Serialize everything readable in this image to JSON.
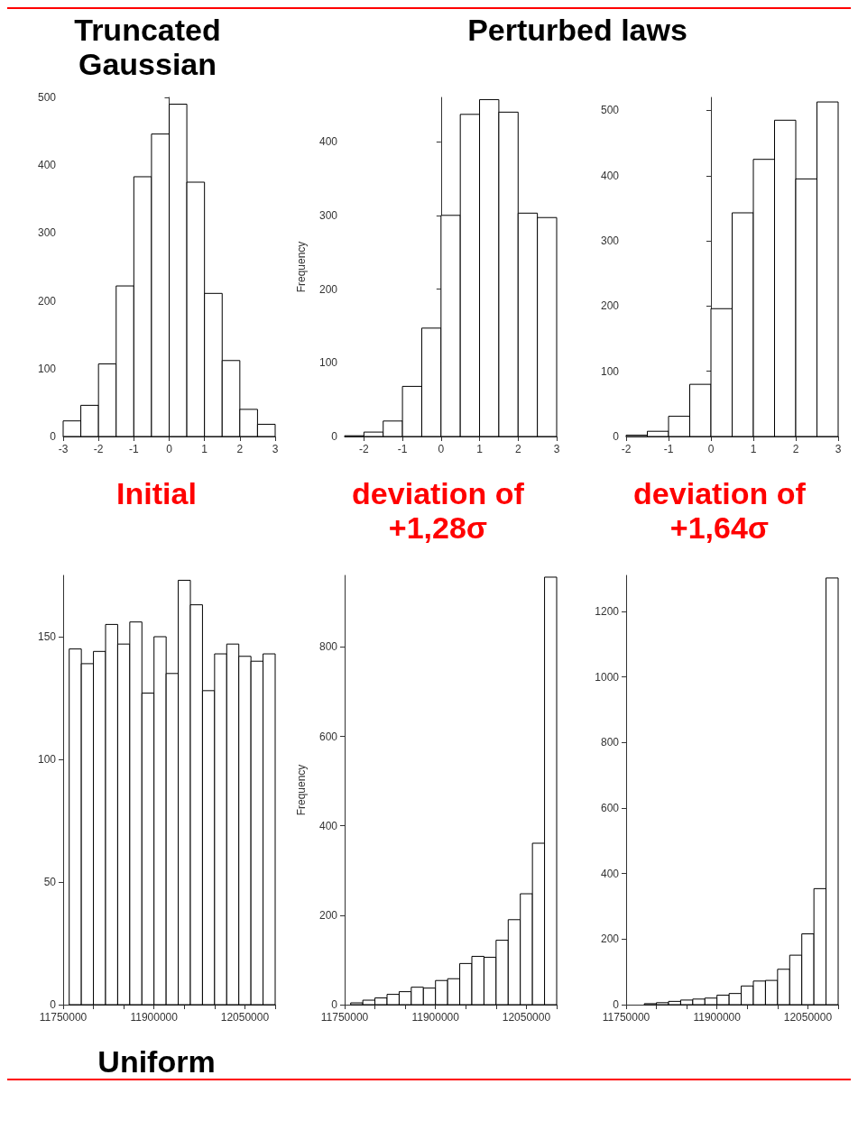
{
  "chart_data": [
    {
      "type": "histogram",
      "title": "Truncated Gaussian",
      "annotations": [
        "Initial"
      ],
      "color": "#ffffff",
      "bins": [
        -3,
        -2.5,
        -2,
        -1.5,
        -1,
        -0.5,
        0,
        0.5,
        1,
        1.5,
        2,
        2.5,
        3
      ],
      "values": [
        23,
        46,
        107,
        222,
        383,
        446,
        490,
        375,
        211,
        112,
        40,
        18
      ],
      "xlim": [
        -3,
        3
      ],
      "xticks": [
        -3,
        -2,
        -1,
        0,
        1,
        2,
        3
      ],
      "ylim": [
        0,
        500
      ],
      "yticks": [
        0,
        100,
        200,
        300,
        400,
        500
      ]
    },
    {
      "type": "histogram",
      "title": "Perturbed laws",
      "ylabel": "Frequency",
      "annotations": [
        "deviation of +1,28σ"
      ],
      "color": "#ffffff",
      "bins": [
        -2.5,
        -2,
        -1.5,
        -1,
        -0.5,
        0,
        0.5,
        1,
        1.5,
        2,
        2.5,
        3
      ],
      "values": [
        1,
        6,
        21,
        68,
        147,
        300,
        437,
        457,
        440,
        303,
        297
      ],
      "xlim": [
        -2.5,
        3
      ],
      "xticks": [
        -2,
        -1,
        0,
        1,
        2,
        3
      ],
      "ylim": [
        0,
        460
      ],
      "yticks": [
        0,
        100,
        200,
        300,
        400
      ]
    },
    {
      "type": "histogram",
      "annotations": [
        "deviation of +1,64σ"
      ],
      "color": "#ffffff",
      "bins": [
        -2,
        -1.5,
        -1,
        -0.5,
        0,
        0.5,
        1,
        1.5,
        2,
        2.5,
        3
      ],
      "values": [
        2,
        8,
        31,
        80,
        196,
        343,
        425,
        485,
        395,
        513
      ],
      "xlim": [
        -2,
        3
      ],
      "xticks": [
        -2,
        -1,
        0,
        1,
        2,
        3
      ],
      "ylim": [
        0,
        520
      ],
      "yticks": [
        0,
        100,
        200,
        300,
        400,
        500
      ]
    },
    {
      "type": "histogram",
      "annotations": [
        "Uniform"
      ],
      "color": "#ffffff",
      "bins": [
        11760000,
        11780000,
        11800000,
        11820000,
        11840000,
        11860000,
        11880000,
        11900000,
        11920000,
        11940000,
        11960000,
        11980000,
        12000000,
        12020000,
        12040000,
        12060000,
        12080000,
        12100000
      ],
      "values": [
        145,
        139,
        144,
        155,
        147,
        156,
        127,
        150,
        135,
        173,
        163,
        128,
        143,
        147,
        142,
        140,
        143
      ],
      "xlim": [
        11750000,
        12100000
      ],
      "xticks": [
        11750000,
        {
          "value": 11800000,
          "label": null
        },
        {
          "value": 11850000,
          "label": null
        },
        11900000,
        {
          "value": 11950000,
          "label": null
        },
        {
          "value": 12000000,
          "label": null
        },
        12050000,
        {
          "value": 12100000,
          "label": null
        }
      ],
      "ylim": [
        0,
        175
      ],
      "yticks": [
        0,
        50,
        100,
        150
      ]
    },
    {
      "type": "histogram",
      "ylabel": "Frequency",
      "color": "#ffffff",
      "bins": [
        11760000,
        11780000,
        11800000,
        11820000,
        11840000,
        11860000,
        11880000,
        11900000,
        11920000,
        11940000,
        11960000,
        11980000,
        12000000,
        12020000,
        12040000,
        12060000,
        12080000,
        12100000
      ],
      "values": [
        4,
        10,
        15,
        23,
        29,
        39,
        37,
        54,
        58,
        92,
        108,
        106,
        144,
        190,
        248,
        361,
        956
      ],
      "xlim": [
        11750000,
        12100000
      ],
      "xticks": [
        11750000,
        {
          "value": 11800000,
          "label": null
        },
        {
          "value": 11850000,
          "label": null
        },
        11900000,
        {
          "value": 11950000,
          "label": null
        },
        {
          "value": 12000000,
          "label": null
        },
        12050000,
        {
          "value": 12100000,
          "label": null
        }
      ],
      "ylim": [
        0,
        960
      ],
      "yticks": [
        0,
        200,
        400,
        600,
        800
      ]
    },
    {
      "type": "histogram",
      "color": "#ffffff",
      "bins": [
        11760000,
        11780000,
        11800000,
        11820000,
        11840000,
        11860000,
        11880000,
        11900000,
        11920000,
        11940000,
        11960000,
        11980000,
        12000000,
        12020000,
        12040000,
        12060000,
        12080000,
        12100000
      ],
      "values": [
        null,
        3,
        6,
        10,
        14,
        17,
        20,
        29,
        34,
        57,
        72,
        74,
        108,
        151,
        216,
        354,
        1302
      ],
      "xlim": [
        11750000,
        12100000
      ],
      "xticks": [
        11750000,
        {
          "value": 11800000,
          "label": null
        },
        {
          "value": 11850000,
          "label": null
        },
        11900000,
        {
          "value": 11950000,
          "label": null
        },
        {
          "value": 12000000,
          "label": null
        },
        12050000,
        {
          "value": 12100000,
          "label": null
        }
      ],
      "ylim": [
        0,
        1310
      ],
      "yticks": [
        0,
        200,
        400,
        600,
        800,
        1000,
        1200
      ]
    }
  ]
}
